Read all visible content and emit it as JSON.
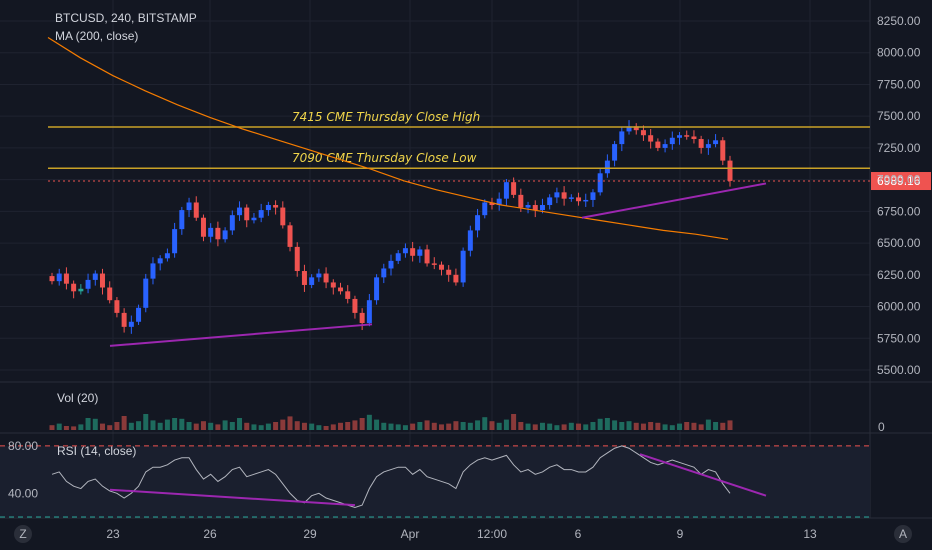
{
  "header": {
    "symbol_line": "BTCUSD, 240, BITSTAMP",
    "ma_label": "MA (200, close)",
    "vol_label": "Vol (20)",
    "rsi_label": "RSI (14, close)"
  },
  "colors": {
    "background": "#131722",
    "up": "#26a69a",
    "up_alt": "#2962ff",
    "down": "#ef5350",
    "ma": "#f57c00",
    "annotation_line": "#c9a227",
    "annotation_text": "#f0d54a",
    "trendline": "#9c27b0",
    "rsi_line": "#b2b5be",
    "price_badge": "#ef5350"
  },
  "bottom_bar": {
    "left_icon": "Z",
    "right_icon": "A"
  },
  "chart_data": [
    {
      "type": "candlestick",
      "name": "price",
      "xlabel": "",
      "ylabel": "",
      "ylim": [
        5450,
        8350
      ],
      "y_ticks": [
        "8250.00",
        "8000.00",
        "7750.00",
        "7500.00",
        "7250.00",
        "7000.00",
        "6750.00",
        "6500.00",
        "6250.00",
        "6000.00",
        "5750.00",
        "5500.00"
      ],
      "x_ticks": [
        "23",
        "26",
        "29",
        "Apr",
        "12:00",
        "6",
        "9",
        "13"
      ],
      "last_price_label": "6989.16",
      "last_price": 6989.16,
      "annotations": [
        {
          "text": "7415 CME Thursday Close High",
          "price": 7415
        },
        {
          "text": "7090 CME Thursday Close Low",
          "price": 7090
        }
      ],
      "trendlines": [
        {
          "start": {
            "x": "Mar 22",
            "y": 5690
          },
          "end": {
            "x": "Mar 30",
            "y": 5860
          }
        },
        {
          "start": {
            "x": "Apr 6",
            "y": 6700
          },
          "end": {
            "x": "Apr 11",
            "y": 6970
          }
        }
      ],
      "ma_200": [
        8120,
        7960,
        7820,
        7700,
        7590,
        7490,
        7400,
        7320,
        7240,
        7160,
        7080,
        6990,
        6920,
        6860,
        6800,
        6760,
        6720,
        6680,
        6640,
        6600,
        6570,
        6530
      ],
      "close": [
        6200,
        6260,
        6180,
        6120,
        6140,
        6210,
        6260,
        6150,
        6050,
        5950,
        5840,
        5880,
        5990,
        6220,
        6340,
        6380,
        6420,
        6610,
        6760,
        6820,
        6700,
        6550,
        6620,
        6530,
        6600,
        6720,
        6780,
        6680,
        6700,
        6760,
        6800,
        6780,
        6640,
        6470,
        6280,
        6170,
        6230,
        6260,
        6190,
        6150,
        6120,
        6060,
        5950,
        5870,
        6050,
        6230,
        6300,
        6360,
        6420,
        6460,
        6400,
        6450,
        6340,
        6330,
        6290,
        6250,
        6190,
        6440,
        6600,
        6720,
        6820,
        6800,
        6850,
        6980,
        6880,
        6780,
        6800,
        6760,
        6800,
        6860,
        6900,
        6850,
        6860,
        6830,
        6840,
        6900,
        7050,
        7150,
        7280,
        7380,
        7420,
        7390,
        7350,
        7300,
        7250,
        7280,
        7330,
        7350,
        7340,
        7320,
        7250,
        7280,
        7310,
        7150,
        6990
      ],
      "bullish_highlight": [
        0,
        1,
        0,
        0,
        0,
        1,
        1,
        0,
        0,
        0,
        0,
        1,
        1,
        1,
        1,
        1,
        1,
        1,
        1,
        1,
        0,
        0,
        1,
        0,
        1,
        1,
        1,
        0,
        1,
        1,
        1,
        0,
        0,
        0,
        0,
        0,
        1,
        1,
        0,
        0,
        0,
        0,
        0,
        0,
        1,
        1,
        1,
        1,
        1,
        1,
        0,
        1,
        0,
        0,
        0,
        0,
        0,
        1,
        1,
        1,
        1,
        0,
        1,
        1,
        0,
        0,
        1,
        0,
        1,
        1,
        1,
        0,
        1,
        0,
        1,
        1,
        1,
        1,
        1,
        1,
        1,
        0,
        0,
        0,
        0,
        1,
        1,
        1,
        0,
        0,
        0,
        1,
        1,
        0,
        0
      ]
    },
    {
      "type": "bar",
      "name": "volume",
      "ylim": [
        0,
        100
      ],
      "y_ticks": [
        "0"
      ],
      "values": [
        12,
        16,
        10,
        9,
        14,
        30,
        28,
        16,
        12,
        20,
        35,
        18,
        22,
        40,
        24,
        18,
        26,
        30,
        28,
        20,
        16,
        22,
        18,
        14,
        24,
        20,
        30,
        18,
        14,
        12,
        16,
        20,
        26,
        34,
        22,
        18,
        16,
        12,
        10,
        14,
        18,
        20,
        24,
        30,
        38,
        26,
        18,
        16,
        14,
        12,
        16,
        20,
        24,
        18,
        14,
        16,
        22,
        20,
        18,
        24,
        32,
        22,
        18,
        26,
        40,
        20,
        16,
        14,
        18,
        16,
        12,
        14,
        18,
        16,
        14,
        20,
        28,
        30,
        24,
        20,
        22,
        18,
        16,
        20,
        18,
        14,
        12,
        16,
        20,
        18,
        14,
        26,
        20,
        18,
        24
      ]
    },
    {
      "type": "line",
      "name": "rsi",
      "ylim": [
        20,
        90
      ],
      "y_ticks": [
        "80.00",
        "40.00"
      ],
      "overbought": 80,
      "oversold": 20,
      "values": [
        56,
        58,
        50,
        46,
        44,
        50,
        52,
        46,
        42,
        40,
        36,
        40,
        46,
        58,
        62,
        62,
        64,
        68,
        70,
        70,
        60,
        52,
        56,
        50,
        54,
        60,
        62,
        54,
        56,
        58,
        60,
        56,
        48,
        40,
        34,
        32,
        38,
        40,
        36,
        34,
        32,
        30,
        28,
        30,
        44,
        54,
        58,
        60,
        62,
        62,
        56,
        60,
        54,
        52,
        50,
        48,
        44,
        58,
        64,
        68,
        70,
        68,
        70,
        72,
        64,
        58,
        60,
        56,
        58,
        62,
        64,
        60,
        60,
        58,
        58,
        62,
        70,
        74,
        78,
        80,
        78,
        74,
        70,
        66,
        64,
        66,
        68,
        66,
        64,
        62,
        56,
        60,
        58,
        48,
        40
      ],
      "trendlines": [
        {
          "start": {
            "x": "Mar 22",
            "y": 43
          },
          "end": {
            "x": "Mar 31",
            "y": 30
          }
        },
        {
          "start": {
            "x": "Apr 8",
            "y": 73
          },
          "end": {
            "x": "Apr 11",
            "y": 38
          }
        }
      ]
    }
  ]
}
